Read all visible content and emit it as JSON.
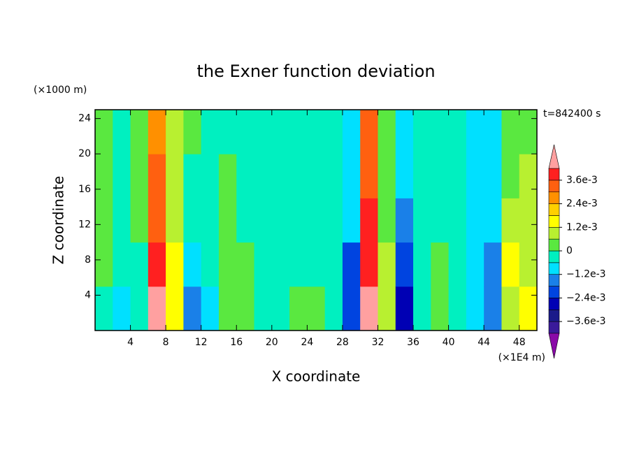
{
  "chart_data": {
    "type": "contour",
    "title": "the Exner function deviation",
    "x_label": "X coordinate",
    "y_label": "Z coordinate",
    "x_unit": "(×1E4 m)",
    "y_unit": "(×1000 m)",
    "time_label": "t=842400 s",
    "xlim": [
      0,
      50
    ],
    "ylim": [
      0,
      25
    ],
    "xticks": [
      4,
      8,
      12,
      16,
      20,
      24,
      28,
      32,
      36,
      40,
      44,
      48
    ],
    "yticks": [
      4,
      8,
      12,
      16,
      20,
      24
    ],
    "x": [
      1,
      3,
      5,
      7,
      9,
      11,
      13,
      15,
      17,
      19,
      21,
      23,
      25,
      27,
      29,
      31,
      33,
      35,
      37,
      39,
      41,
      43,
      45,
      47,
      49
    ],
    "z": [
      2.5,
      7.5,
      12.5,
      17.5,
      22.5
    ],
    "values": [
      [
        -0.0004,
        0.0003,
        0.0003,
        0.0003,
        0.0004
      ],
      [
        -0.001,
        -0.0005,
        -0.0003,
        -0.0003,
        -0.0003
      ],
      [
        -0.0005,
        -0.0003,
        0.0003,
        0.0005,
        0.0005
      ],
      [
        0.0045,
        0.004,
        0.0035,
        0.003,
        0.0025
      ],
      [
        0.0015,
        0.0012,
        0.001,
        0.0008,
        0.0008
      ],
      [
        -0.0015,
        -0.001,
        -0.0005,
        -0.0003,
        0.0003
      ],
      [
        -0.0008,
        -0.0003,
        -0.0003,
        -0.0003,
        -0.0003
      ],
      [
        0.0003,
        0.0005,
        0.0005,
        0.0003,
        -0.0003
      ],
      [
        0.0003,
        0.0003,
        -0.0003,
        -0.0003,
        -0.0003
      ],
      [
        -0.0003,
        -0.0003,
        -0.0003,
        -0.0003,
        -0.0003
      ],
      [
        -0.0003,
        -0.0003,
        -0.0003,
        -0.0003,
        -0.0003
      ],
      [
        0.0003,
        -0.0003,
        -0.0003,
        -0.0003,
        -0.0003
      ],
      [
        0.0003,
        -0.0003,
        -0.0003,
        -0.0003,
        -0.0003
      ],
      [
        -0.0005,
        -0.0005,
        -0.0005,
        -0.0005,
        -0.0003
      ],
      [
        -0.002,
        -0.002,
        -0.0012,
        -0.0007,
        -0.0007
      ],
      [
        0.0045,
        0.004,
        0.004,
        0.0035,
        0.0035
      ],
      [
        0.001,
        0.0008,
        0.0005,
        0.0003,
        0.0003
      ],
      [
        -0.0025,
        -0.002,
        -0.0015,
        -0.0012,
        -0.0007
      ],
      [
        -0.0005,
        -0.0003,
        -0.0003,
        -0.0003,
        -0.0003
      ],
      [
        0.0005,
        0.0003,
        -0.0003,
        -0.0003,
        -0.0003
      ],
      [
        -0.0003,
        -0.0003,
        -0.0003,
        -0.0003,
        -0.0003
      ],
      [
        -0.0008,
        -0.0008,
        -0.0008,
        -0.0008,
        -0.0008
      ],
      [
        -0.0015,
        -0.0015,
        -0.0012,
        -0.0008,
        -0.0008
      ],
      [
        0.0008,
        0.0012,
        0.0008,
        0.0005,
        0.0005
      ],
      [
        0.0015,
        0.001,
        0.0008,
        0.0006,
        0.0005
      ]
    ],
    "levels": [
      -0.0042,
      -0.0036,
      -0.003,
      -0.0024,
      -0.0018,
      -0.0012,
      -0.0006,
      0,
      0.0006,
      0.0012,
      0.0018,
      0.0024,
      0.003,
      0.0036,
      0.0042
    ],
    "colors": [
      "#8a0aa8",
      "#3a1a9a",
      "#1a1a8a",
      "#0000b4",
      "#0044e0",
      "#1a80e8",
      "#00e0ff",
      "#00f0c0",
      "#5ae840",
      "#b8f030",
      "#ffff00",
      "#ffd000",
      "#ff9000",
      "#ff6010",
      "#ff2020",
      "#ffa0a0"
    ],
    "colorbar_ticks": [
      {
        "value": 0.0036,
        "label": "3.6e-3"
      },
      {
        "value": 0.0024,
        "label": "2.4e-3"
      },
      {
        "value": 0.0012,
        "label": "1.2e-3"
      },
      0,
      {
        "value": -0.0012,
        "label": "−1.2e-3"
      },
      {
        "value": -0.0024,
        "label": "−2.4e-3"
      },
      {
        "value": -0.0036,
        "label": "−3.6e-3"
      }
    ]
  }
}
